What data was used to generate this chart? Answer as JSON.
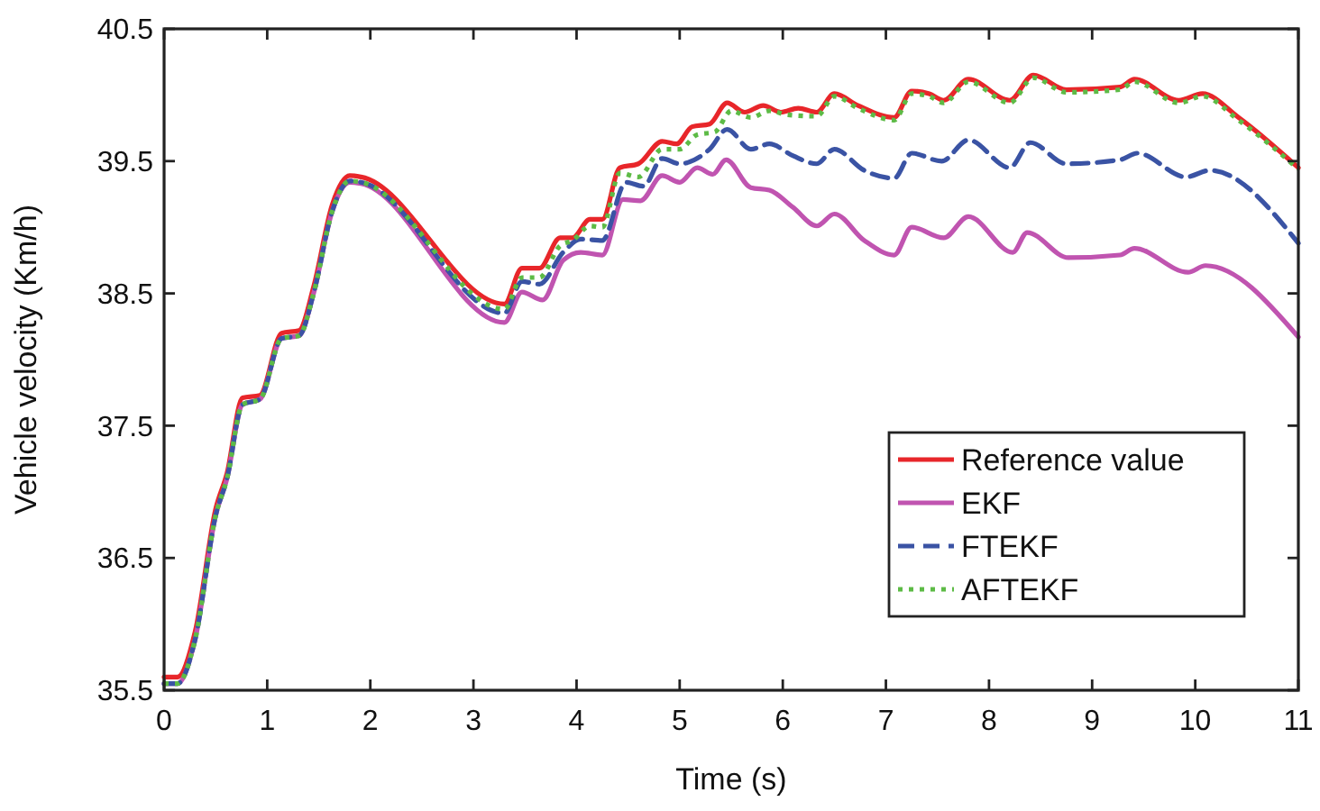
{
  "chart_data": {
    "type": "line",
    "xlabel": "Time (s)",
    "ylabel": "Vehicle velocity (Km/h)",
    "xlim": [
      0,
      11
    ],
    "xticks": [
      0,
      1,
      2,
      3,
      4,
      5,
      6,
      7,
      8,
      9,
      10,
      11
    ],
    "ylim": [
      35.5,
      40.5
    ],
    "yticks": [
      35.5,
      36.5,
      37.5,
      38.5,
      39.5,
      40.5
    ],
    "legend": "right",
    "grid": false,
    "marker": "none",
    "series": [
      {
        "name": "Reference value",
        "color": "#e8262a",
        "line_style": "solid",
        "x": [
          0,
          0.13,
          0.3,
          0.5,
          0.61,
          0.76,
          0.93,
          1.14,
          1.31,
          1.45,
          1.63,
          1.8,
          1.91,
          3.3,
          3.47,
          3.64,
          3.84,
          3.96,
          4.13,
          4.25,
          4.42,
          4.6,
          4.83,
          4.97,
          5.12,
          5.29,
          5.46,
          5.63,
          5.81,
          5.98,
          6.15,
          6.33,
          6.5,
          6.73,
          7.08,
          7.25,
          7.42,
          7.56,
          7.8,
          8.2,
          8.43,
          8.75,
          9.27,
          9.41,
          9.84,
          10.07,
          10.42,
          11
        ],
        "values": [
          35.6,
          35.6,
          35.94,
          36.87,
          37.14,
          37.71,
          37.73,
          38.2,
          38.22,
          38.55,
          39.17,
          39.39,
          39.38,
          38.42,
          38.69,
          38.69,
          38.92,
          38.92,
          39.06,
          39.06,
          39.45,
          39.48,
          39.65,
          39.63,
          39.76,
          39.78,
          39.94,
          39.87,
          39.92,
          39.87,
          39.9,
          39.87,
          40.01,
          39.92,
          39.83,
          40.03,
          40.01,
          39.96,
          40.12,
          39.96,
          40.15,
          40.04,
          40.06,
          40.12,
          39.96,
          40.01,
          39.83,
          39.45
        ]
      },
      {
        "name": "EKF",
        "color": "#c054b0",
        "line_style": "solid",
        "x": [
          0,
          0.13,
          0.3,
          0.5,
          0.61,
          0.76,
          0.93,
          1.14,
          1.31,
          1.45,
          1.63,
          1.8,
          1.91,
          3.3,
          3.47,
          3.67,
          3.87,
          4.04,
          4.25,
          4.45,
          4.62,
          4.83,
          5.0,
          5.17,
          5.32,
          5.45,
          5.69,
          5.87,
          6.1,
          6.33,
          6.5,
          6.79,
          7.08,
          7.25,
          7.56,
          7.8,
          8.23,
          8.37,
          8.77,
          9.27,
          9.41,
          9.93,
          10.1,
          11
        ],
        "values": [
          35.55,
          35.55,
          35.88,
          36.82,
          37.1,
          37.66,
          37.7,
          38.16,
          38.18,
          38.5,
          39.12,
          39.34,
          39.33,
          38.28,
          38.51,
          38.45,
          38.75,
          38.81,
          38.79,
          39.21,
          39.2,
          39.39,
          39.34,
          39.45,
          39.4,
          39.51,
          39.3,
          39.28,
          39.15,
          39.01,
          39.1,
          38.9,
          38.79,
          39.0,
          38.92,
          39.08,
          38.81,
          38.96,
          38.77,
          38.79,
          38.84,
          38.66,
          38.71,
          38.17
        ]
      },
      {
        "name": "FTEKF",
        "color": "#3a53a4",
        "line_style": "dashed",
        "x": [
          0,
          0.13,
          0.3,
          0.5,
          0.61,
          0.76,
          0.93,
          1.14,
          1.31,
          1.45,
          1.63,
          1.8,
          1.91,
          3.3,
          3.47,
          3.64,
          3.87,
          4.04,
          4.25,
          4.48,
          4.65,
          4.83,
          5.0,
          5.29,
          5.46,
          5.69,
          5.87,
          6.1,
          6.33,
          6.5,
          6.79,
          7.08,
          7.25,
          7.54,
          7.8,
          8.2,
          8.4,
          8.75,
          9.27,
          9.44,
          9.91,
          10.14,
          11
        ],
        "values": [
          35.55,
          35.55,
          35.88,
          36.82,
          37.1,
          37.66,
          37.7,
          38.16,
          38.18,
          38.5,
          39.12,
          39.35,
          39.34,
          38.35,
          38.59,
          38.57,
          38.81,
          38.91,
          38.9,
          39.34,
          39.31,
          39.52,
          39.48,
          39.59,
          39.74,
          39.59,
          39.63,
          39.54,
          39.48,
          39.59,
          39.43,
          39.37,
          39.56,
          39.5,
          39.66,
          39.45,
          39.64,
          39.48,
          39.51,
          39.56,
          39.38,
          39.43,
          38.88
        ]
      },
      {
        "name": "AFTEKF",
        "color": "#5dbb46",
        "line_style": "dotted",
        "x": [
          0,
          0.13,
          0.3,
          0.5,
          0.61,
          0.76,
          0.93,
          1.14,
          1.31,
          1.45,
          1.63,
          1.8,
          1.91,
          3.3,
          3.47,
          3.64,
          3.84,
          3.96,
          4.13,
          4.25,
          4.42,
          4.6,
          4.83,
          5.0,
          5.17,
          5.34,
          5.5,
          5.69,
          5.87,
          6.05,
          6.33,
          6.5,
          6.73,
          7.08,
          7.25,
          7.42,
          7.56,
          7.8,
          8.2,
          8.43,
          8.75,
          9.27,
          9.41,
          9.84,
          10.07,
          10.42,
          11
        ],
        "values": [
          35.55,
          35.55,
          35.88,
          36.82,
          37.1,
          37.66,
          37.7,
          38.16,
          38.18,
          38.5,
          39.12,
          39.35,
          39.34,
          38.38,
          38.62,
          38.62,
          38.86,
          38.9,
          39.01,
          39.0,
          39.41,
          39.38,
          39.59,
          39.59,
          39.7,
          39.72,
          39.88,
          39.83,
          39.88,
          39.85,
          39.84,
          39.99,
          39.9,
          39.81,
          40.01,
          39.99,
          39.94,
          40.1,
          39.94,
          40.13,
          40.02,
          40.04,
          40.1,
          39.94,
          39.99,
          39.81,
          39.44
        ]
      }
    ]
  }
}
